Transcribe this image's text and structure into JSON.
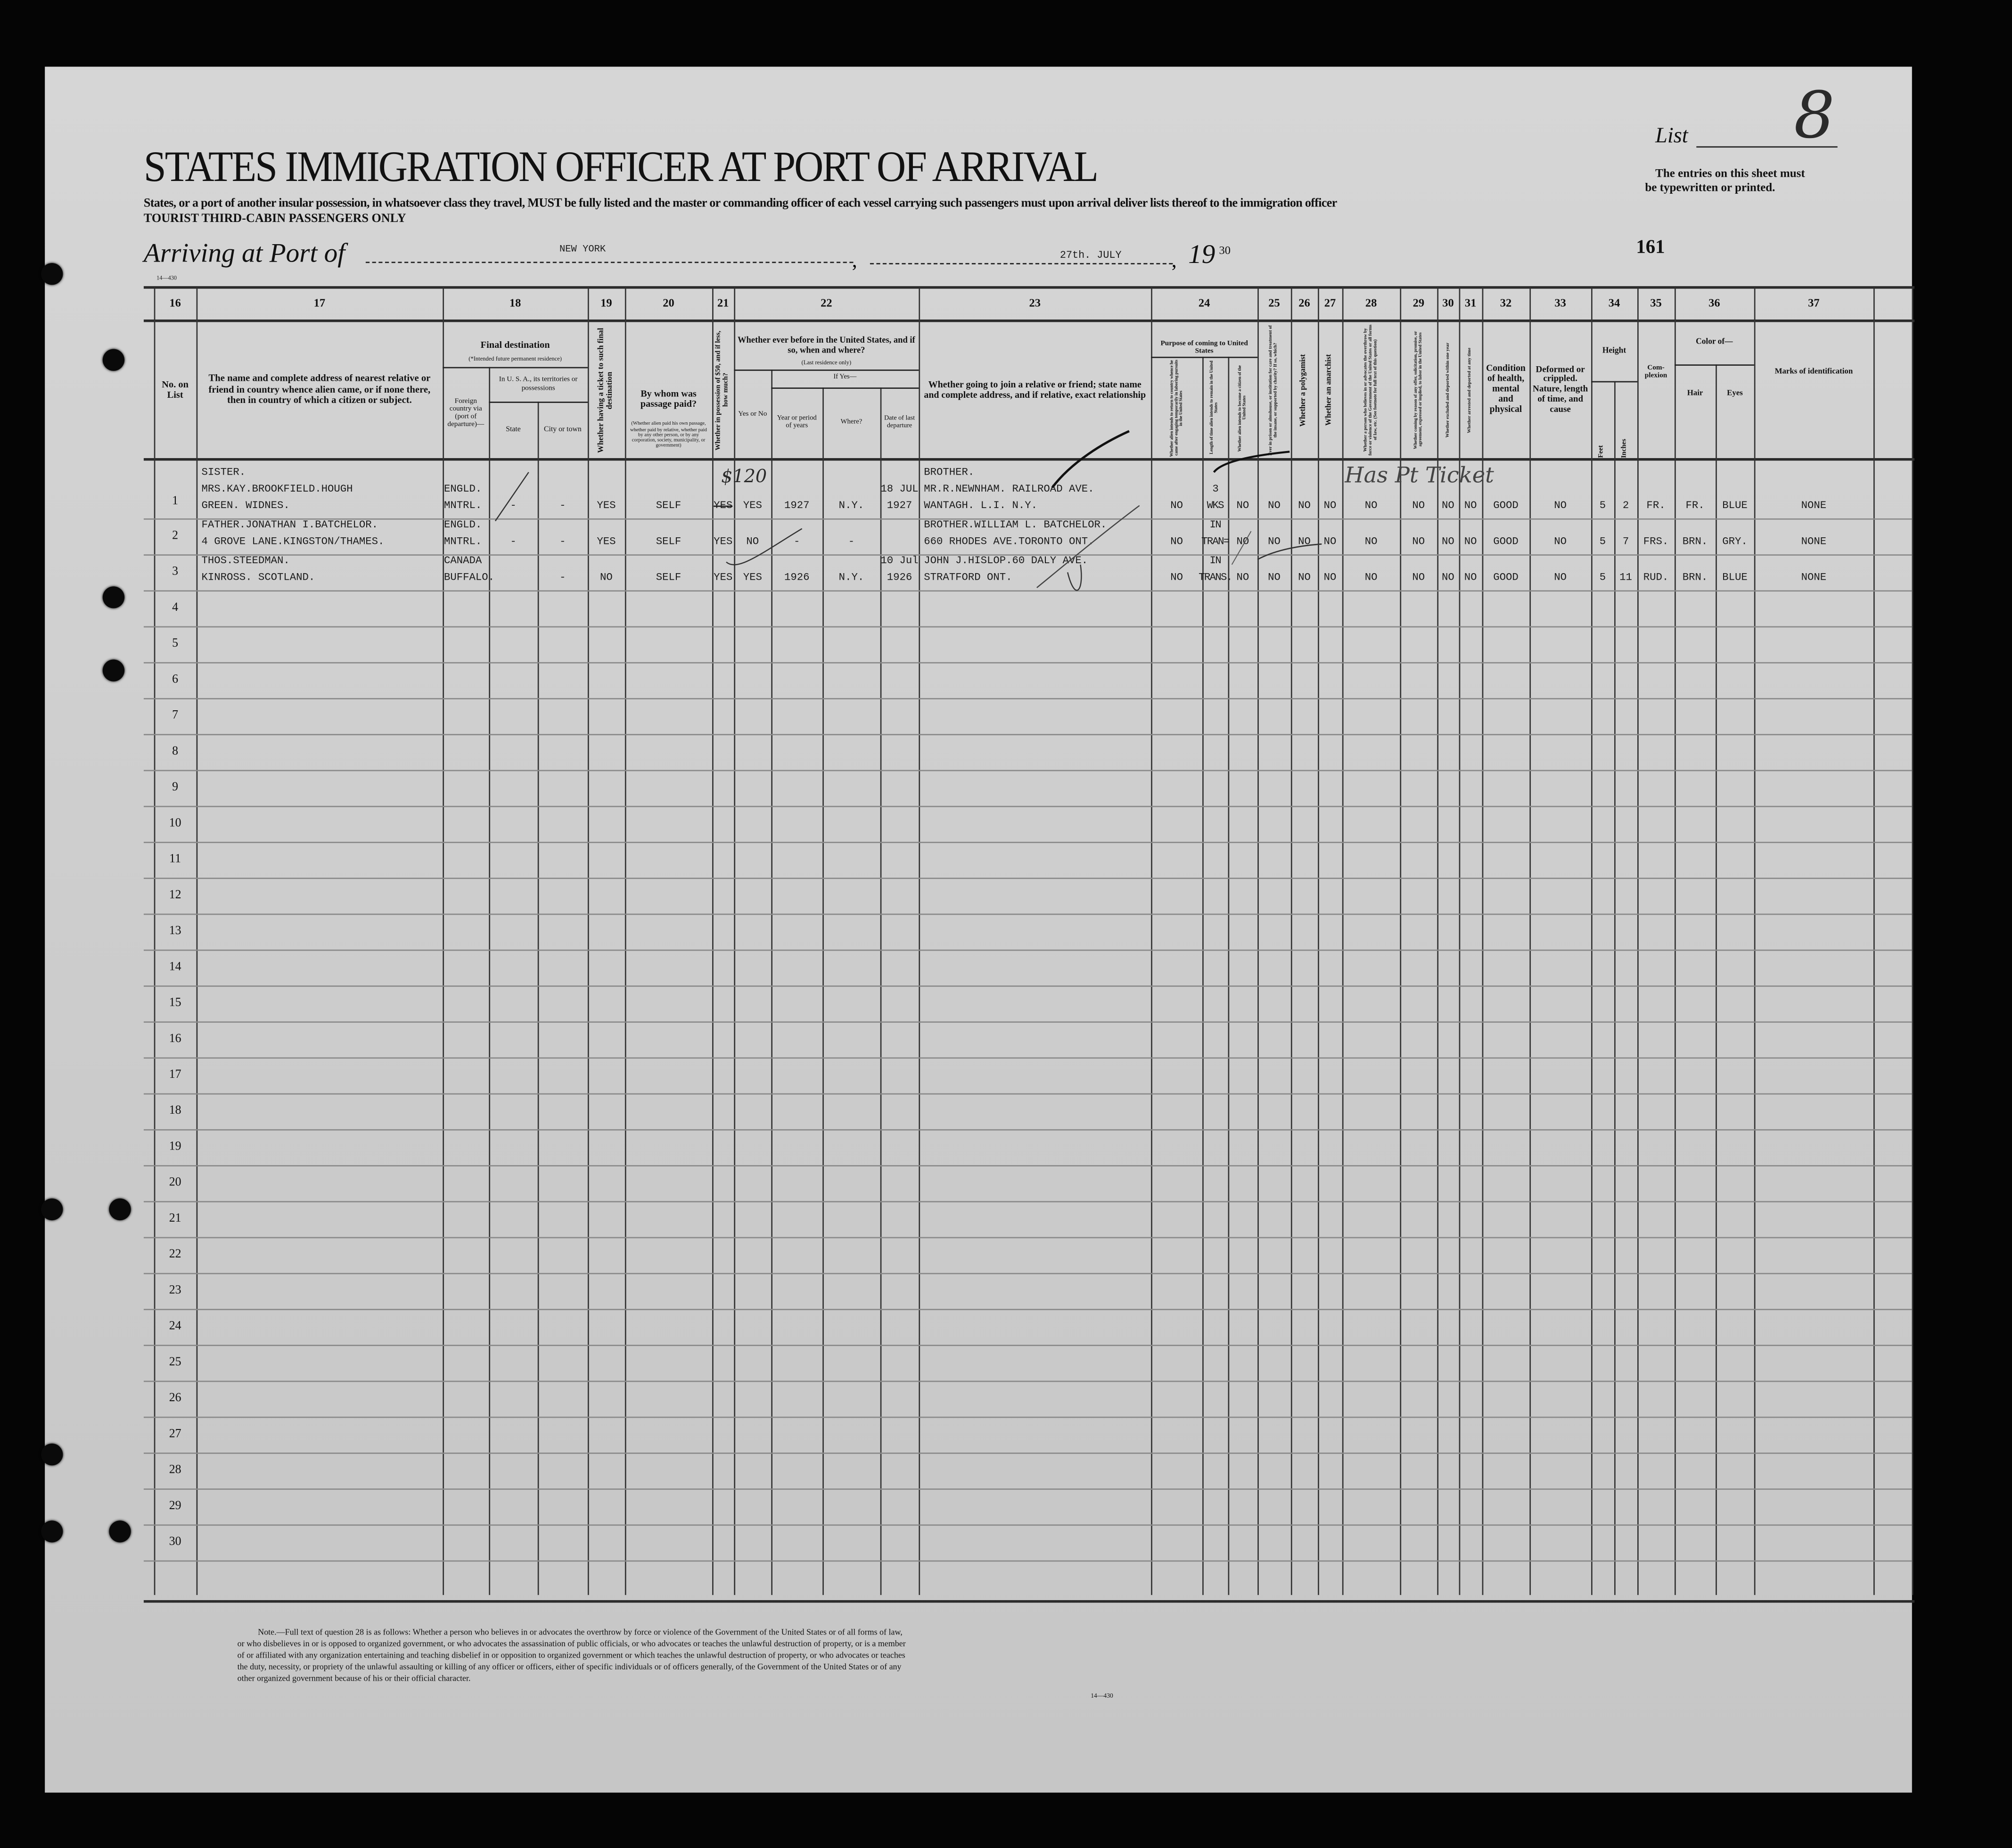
{
  "form": {
    "title": "STATES IMMIGRATION OFFICER AT PORT OF ARRIVAL",
    "instructions": "States, or a port of another insular possession, in whatsoever class they travel, MUST be fully listed and the master or commanding officer of each vessel carrying such passengers must upon arrival deliver lists thereof to the immigration officer",
    "tourist_note": "TOURIST THIRD-CABIN PASSENGERS ONLY",
    "list_label": "List",
    "list_number": "8",
    "sheet_note_lines": [
      "The entries on this sheet must",
      "be typewritten or printed."
    ],
    "arriving_label": "Arriving at Port of",
    "port": "NEW YORK",
    "date": "27th. JULY",
    "year_prefix": "19",
    "year_suffix": "30",
    "page_number": "161",
    "form_code": "14—430",
    "footnote_lines": [
      "Note.—Full text of question 28 is as follows: Whether a person who believes in or advocates the overthrow by force or violence of the Government of the United States or of all forms of law,",
      "or who disbelieves in or is opposed to organized government, or who advocates the assassination of public officials, or who advocates or teaches the unlawful destruction of property, or is a member",
      "of or affiliated with any organization entertaining and teaching disbelief in or opposition to organized government or which teaches the unlawful destruction of property, or who advocates or teaches",
      "the duty, necessity, or propriety of the unlawful assaulting or killing of any officer or officers, either of specific individuals or of officers generally, of the Government of the United States or of any",
      "other organized government because of his or their official character."
    ],
    "footnote_code": "14—430"
  },
  "columns": {
    "numbers": {
      "c16": "16",
      "c17": "17",
      "c18": "18",
      "c19": "19",
      "c20": "20",
      "c21": "21",
      "c22": "22",
      "c23": "23",
      "c24": "24",
      "c25": "25",
      "c26": "26",
      "c27": "27",
      "c28": "28",
      "c29": "29",
      "c30": "30",
      "c31": "31",
      "c32": "32",
      "c33": "33",
      "c34": "34",
      "c35": "35",
      "c36": "36",
      "c37": "37"
    },
    "headers": {
      "c16": "No. on List",
      "c17": "The name and complete address of nearest relative or friend in country whence alien came, or if none there, then in country of which a citizen or subject.",
      "c18_group": "Final destination",
      "c18_group_note": "(*Intended future permanent residence)",
      "c18a": "Foreign country via (port of departure)—",
      "c18_usa": "In U. S. A., its territories or possessions",
      "c18b": "State",
      "c18c": "City or town",
      "c19": "Whether having a ticket to such final destination",
      "c20": "By whom was passage paid?",
      "c20_note": "(Whether alien paid his own passage, whether paid by relative, whether paid by any other person, or by any corporation, society, municipality, or government)",
      "c21": "Whether in possession of $50, and if less, how much?",
      "c22_group": "Whether ever before in the United States, and if so, when and where?",
      "c22_group_note": "(Last residence only)",
      "c22a": "Yes or No",
      "c22_ifyes": "If Yes—",
      "c22b": "Year or period of years",
      "c22c": "Where?",
      "c22d": "Date of last departure",
      "c23": "Whether going to join a relative or friend; state name and complete address, and if relative, exact relationship",
      "c24_group": "Purpose of coming to United States",
      "c24a": "Whether alien intends to return to country whence he came after engaging temporarily in laboring pursuits in the United States",
      "c24b": "Length of time alien intends to remain in the United States",
      "c24c": "Whether alien intends to become a citizen of the United States",
      "c25": "Ever in prison or almshouse, or institution for care and treatment of the insane, or supported by charity? If so, which?",
      "c26": "Whether a polygamist",
      "c27": "Whether an anarchist",
      "c28": "Whether a person who believes in or advocates the overthrow by force or violence of the Government of the United States or all forms of law, etc. (See footnote for full text of this question)",
      "c29": "Whether coming by reason of any offer, solicitation, promise, or agreement, expressed or implied, to labor in the United States",
      "c30": "Whether excluded and deported within one year",
      "c31": "Whether arrested and deported at any time",
      "c32": "Condition of health, mental and physical",
      "c33": "Deformed or crippled. Nature, length of time, and cause",
      "c34_group": "Height",
      "c34a": "Feet",
      "c34b": "Inches",
      "c35": "Com- plexion",
      "c36_group": "Color of—",
      "c36a": "Hair",
      "c36b": "Eyes",
      "c37": "Marks of identification"
    }
  },
  "row_numbers": [
    "1",
    "2",
    "3",
    "4",
    "5",
    "6",
    "7",
    "8",
    "9",
    "10",
    "11",
    "12",
    "13",
    "14",
    "15",
    "16",
    "17",
    "18",
    "19",
    "20",
    "21",
    "22",
    "23",
    "24",
    "25",
    "26",
    "27",
    "28",
    "29",
    "30"
  ],
  "rows": [
    {
      "c17": [
        "SISTER.",
        "MRS.KAY.BROOKFIELD.HOUGH",
        "GREEN. WIDNES."
      ],
      "c18a": [
        "ENGLD.",
        "MNTRL."
      ],
      "c18b": "-",
      "c18c": "-",
      "c19": "YES",
      "c20": "SELF",
      "c21": "YES",
      "c22a": "YES",
      "c22b": "1927",
      "c22c": "N.Y.",
      "c22d": [
        "18 JUL",
        "1927"
      ],
      "c23": [
        "BROTHER.",
        "MR.R.NEWNHAM. RAILROAD AVE.",
        "WANTAGH. L.I. N.Y."
      ],
      "c24a": "NO",
      "c24b": [
        "3",
        "WKS"
      ],
      "c24c": "NO",
      "c25": "NO",
      "c26": "NO",
      "c27": "NO",
      "c28": "NO",
      "c29": "NO",
      "c30": "NO",
      "c31": "NO",
      "c32": "GOOD",
      "c33": "NO",
      "c34a": "5",
      "c34b": "2",
      "c35": "FR.",
      "c36a": "FR.",
      "c36b": "BLUE",
      "c37": "NONE"
    },
    {
      "c17": [
        "FATHER.JONATHAN I.BATCHELOR.",
        "4 GROVE LANE.KINGSTON/THAMES."
      ],
      "c18a": [
        "ENGLD.",
        "MNTRL."
      ],
      "c18b": "-",
      "c18c": "-",
      "c19": "YES",
      "c20": "SELF",
      "c21": "YES",
      "c22a": "NO",
      "c22b": "-",
      "c22c": "-",
      "c23": [
        "BROTHER.WILLIAM L. BATCHELOR.",
        "660 RHODES AVE.TORONTO ONT."
      ],
      "c24a": "NO",
      "c24b": [
        "IN",
        "TRAN="
      ],
      "c24c": "NO",
      "c25": "NO",
      "c26": "NO",
      "c27": "NO",
      "c28": "NO",
      "c29": "NO",
      "c30": "NO",
      "c31": "NO",
      "c32": "GOOD",
      "c33": "NO",
      "c34a": "5",
      "c34b": "7",
      "c35": "FRS.",
      "c36a": "BRN.",
      "c36b": "GRY.",
      "c37": "NONE"
    },
    {
      "c17": [
        "THOS.STEEDMAN.",
        "KINROSS. SCOTLAND."
      ],
      "c18a": [
        "CANADA",
        "BUFFALO."
      ],
      "c18c": "-",
      "c19": "NO",
      "c20": "SELF",
      "c21": "YES",
      "c22a": "YES",
      "c22b": "1926",
      "c22c": "N.Y.",
      "c22d": [
        "10 Jul",
        "1926"
      ],
      "c23": [
        "JOHN J.HISLOP.60 DALY AVE.",
        "STRATFORD ONT."
      ],
      "c24a": "NO",
      "c24b": [
        "IN",
        "TRANS."
      ],
      "c24c": "NO",
      "c25": "NO",
      "c26": "NO",
      "c27": "NO",
      "c28": "NO",
      "c29": "NO",
      "c30": "NO",
      "c31": "NO",
      "c32": "GOOD",
      "c33": "NO",
      "c34a": "5",
      "c34b": "11",
      "c35": "RUD.",
      "c36a": "BRN.",
      "c36b": "BLUE",
      "c37": "NONE"
    }
  ],
  "annotations": {
    "handwritten_amount": "$120",
    "handwritten_note": "Has Pt Ticket"
  },
  "colors": {
    "paper": "#cfcfcf",
    "ink": "#111111",
    "background": "#050505"
  }
}
